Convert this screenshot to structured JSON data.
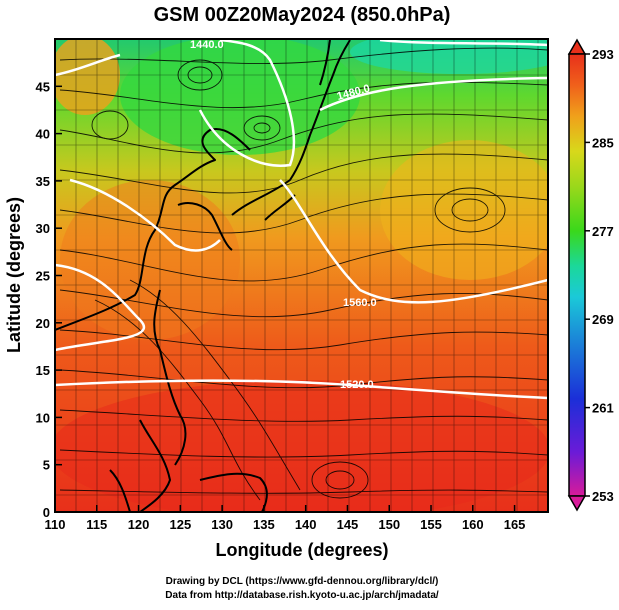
{
  "title": "GSM 00Z20May2024 (850.0hPa)",
  "axes": {
    "x_label": "Longitude (degrees)",
    "y_label": "Latitude  (degrees)",
    "x_ticks": [
      "110",
      "115",
      "120",
      "125",
      "130",
      "135",
      "140",
      "145",
      "150",
      "155",
      "160",
      "165"
    ],
    "y_ticks": [
      "0",
      "5",
      "10",
      "15",
      "20",
      "25",
      "30",
      "35",
      "40",
      "45"
    ],
    "x_range": [
      110,
      169
    ],
    "y_range": [
      0,
      50
    ]
  },
  "colorbar": {
    "labels": [
      "293",
      "285",
      "277",
      "269",
      "261",
      "253"
    ],
    "min": 253,
    "max": 293,
    "colors": [
      "#d81b9a",
      "#6a1bd8",
      "#1b2fd8",
      "#1b8ad8",
      "#1bc9d8",
      "#1bd89a",
      "#3ad81b",
      "#9ad81b",
      "#d8d81b",
      "#f0a01b",
      "#f0601b",
      "#e8301b"
    ]
  },
  "contour_labels": [
    "1520.0",
    "1560.0",
    "1480.0",
    "1440.0"
  ],
  "credits": {
    "line1": "Drawing by DCL (https://www.gfd-dennou.org/library/dcl/)",
    "line2": "Data from http://database.rish.kyoto-u.ac.jp/arch/jmadata/"
  }
}
